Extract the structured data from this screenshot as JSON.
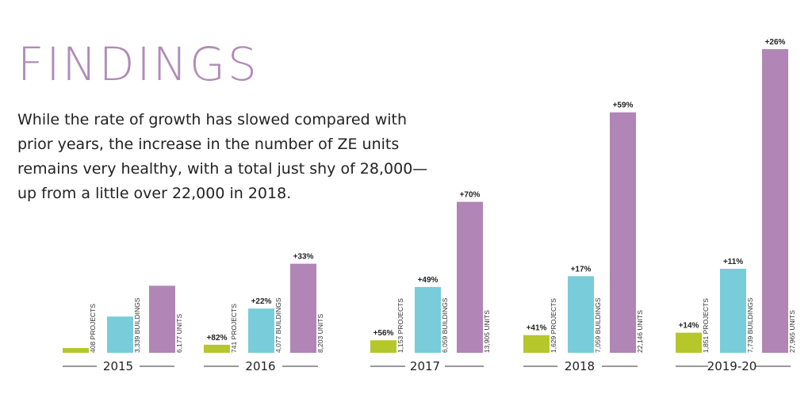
{
  "header": {
    "title": "FINDINGS",
    "intro": "While the rate of growth has slowed compared with prior years, the increase in the number of ZE units remains very healthy, with a total just shy of 28,000—up from a little over 22,000 in 2018."
  },
  "colors": {
    "title": "#b08bb8",
    "projects": "#b5c72b",
    "buildings": "#79ccd9",
    "units": "#b185b5"
  },
  "chart_data": {
    "type": "bar",
    "title": "FINDINGS",
    "categories": [
      "2015",
      "2016",
      "2017",
      "2018",
      "2019-20"
    ],
    "series": [
      {
        "name": "projects",
        "unit_label": "PROJECTS",
        "values": [
          408,
          741,
          1153,
          1629,
          1851
        ],
        "value_labels": [
          "408",
          "741",
          "1,153",
          "1,629",
          "1,851"
        ],
        "growth": [
          "",
          "+82%",
          "+56%",
          "+41%",
          "+14%"
        ]
      },
      {
        "name": "buildings",
        "unit_label": "BUILDINGS",
        "values": [
          3339,
          4077,
          6059,
          7059,
          7739
        ],
        "value_labels": [
          "3,339",
          "4,077",
          "6,059",
          "7,059",
          "7,739"
        ],
        "growth": [
          "",
          "+22%",
          "+49%",
          "+17%",
          "+11%"
        ]
      },
      {
        "name": "units",
        "unit_label": "UNITS",
        "values": [
          6177,
          8203,
          13905,
          22146,
          27965
        ],
        "value_labels": [
          "6,177",
          "8,203",
          "13,905",
          "22,146",
          "27,965"
        ],
        "growth": [
          "",
          "+33%",
          "+70%",
          "+59%",
          "+26%"
        ]
      }
    ],
    "xlabel": "",
    "ylabel": "",
    "grid": false,
    "legend": "none"
  }
}
